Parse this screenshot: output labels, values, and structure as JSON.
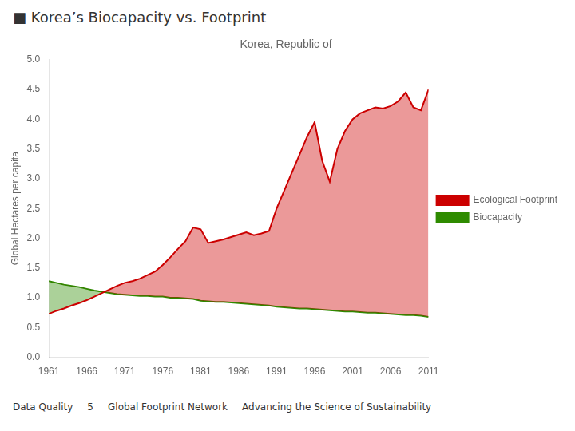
{
  "chart_data": {
    "type": "line",
    "title": "■ Korea’s Biocapacity vs. Footprint",
    "subtitle": "Korea, Republic of",
    "ylabel": "Global Hectares per capita",
    "x": [
      1961,
      1962,
      1963,
      1964,
      1965,
      1966,
      1967,
      1968,
      1969,
      1970,
      1971,
      1972,
      1973,
      1974,
      1975,
      1976,
      1977,
      1978,
      1979,
      1980,
      1981,
      1982,
      1983,
      1984,
      1985,
      1986,
      1987,
      1988,
      1989,
      1990,
      1991,
      1992,
      1993,
      1994,
      1995,
      1996,
      1997,
      1998,
      1999,
      2000,
      2001,
      2002,
      2003,
      2004,
      2005,
      2006,
      2007,
      2008,
      2009,
      2010,
      2011
    ],
    "series": [
      {
        "name": "Ecological Footprint",
        "color": "#cc0000",
        "values": [
          0.73,
          0.78,
          0.82,
          0.87,
          0.91,
          0.96,
          1.02,
          1.08,
          1.14,
          1.2,
          1.25,
          1.28,
          1.32,
          1.38,
          1.44,
          1.55,
          1.68,
          1.82,
          1.95,
          2.18,
          2.15,
          1.92,
          1.95,
          1.98,
          2.02,
          2.06,
          2.1,
          2.05,
          2.08,
          2.12,
          2.5,
          2.8,
          3.1,
          3.4,
          3.7,
          3.95,
          3.3,
          2.95,
          3.5,
          3.8,
          4.0,
          4.1,
          4.15,
          4.2,
          4.18,
          4.22,
          4.3,
          4.45,
          4.2,
          4.15,
          4.5
        ]
      },
      {
        "name": "Biocapacity",
        "color": "#2e8b00",
        "values": [
          1.28,
          1.25,
          1.22,
          1.2,
          1.18,
          1.15,
          1.12,
          1.1,
          1.08,
          1.06,
          1.05,
          1.04,
          1.03,
          1.03,
          1.02,
          1.02,
          1.0,
          1.0,
          0.99,
          0.98,
          0.95,
          0.94,
          0.93,
          0.93,
          0.92,
          0.91,
          0.9,
          0.89,
          0.88,
          0.87,
          0.85,
          0.84,
          0.83,
          0.82,
          0.82,
          0.81,
          0.8,
          0.79,
          0.78,
          0.77,
          0.77,
          0.76,
          0.75,
          0.75,
          0.74,
          0.73,
          0.72,
          0.71,
          0.71,
          0.7,
          0.68
        ]
      }
    ],
    "xlim": [
      1961,
      2011
    ],
    "xticks": [
      1961,
      1966,
      1971,
      1976,
      1981,
      1986,
      1991,
      1996,
      2001,
      2006,
      2011
    ],
    "ylim": [
      0.0,
      5.0
    ],
    "yticks": [
      {
        "value": 0,
        "label": "0.0"
      },
      0.5,
      {
        "value": 1,
        "label": "1.0"
      },
      1.5,
      {
        "value": 2,
        "label": "2.0"
      },
      2.5,
      {
        "value": 3,
        "label": "3.0"
      },
      3.5,
      {
        "value": 4,
        "label": "4.0"
      },
      4.5,
      {
        "value": 5,
        "label": "5.0"
      }
    ],
    "grid": false,
    "legend": "right",
    "annotations": [
      "Data Quality",
      "5",
      "Global Footprint Network",
      "Advancing the Science of Sustainability"
    ]
  }
}
